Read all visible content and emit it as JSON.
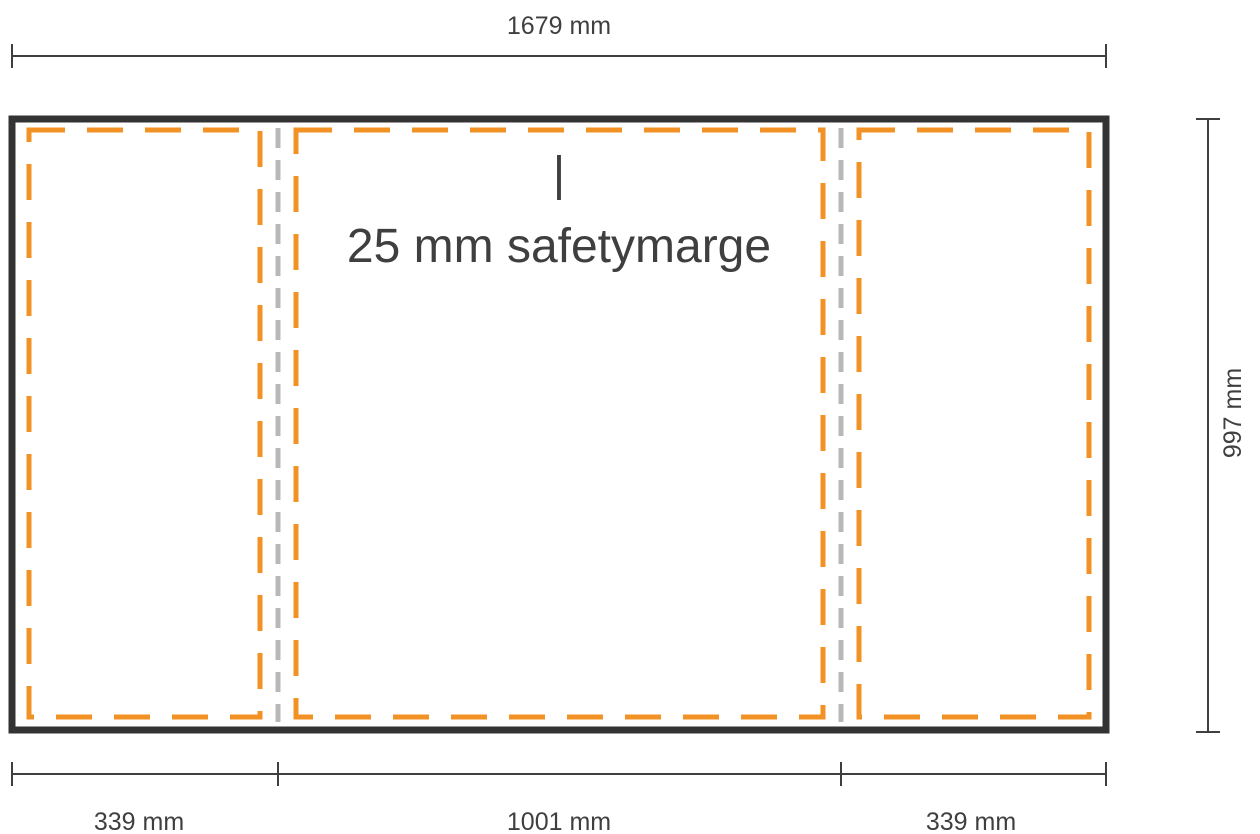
{
  "dimensions": {
    "total_width": "1679 mm",
    "total_height": "997 mm",
    "left_panel": "339 mm",
    "center_panel": "1001 mm",
    "right_panel": "339 mm"
  },
  "annotation": {
    "marker": "|",
    "text": "25 mm safetymarge"
  },
  "colors": {
    "frame": "#333333",
    "safety_margin": "#f39224",
    "fold_line": "#b8b8b8",
    "text": "#3f3f3f"
  }
}
